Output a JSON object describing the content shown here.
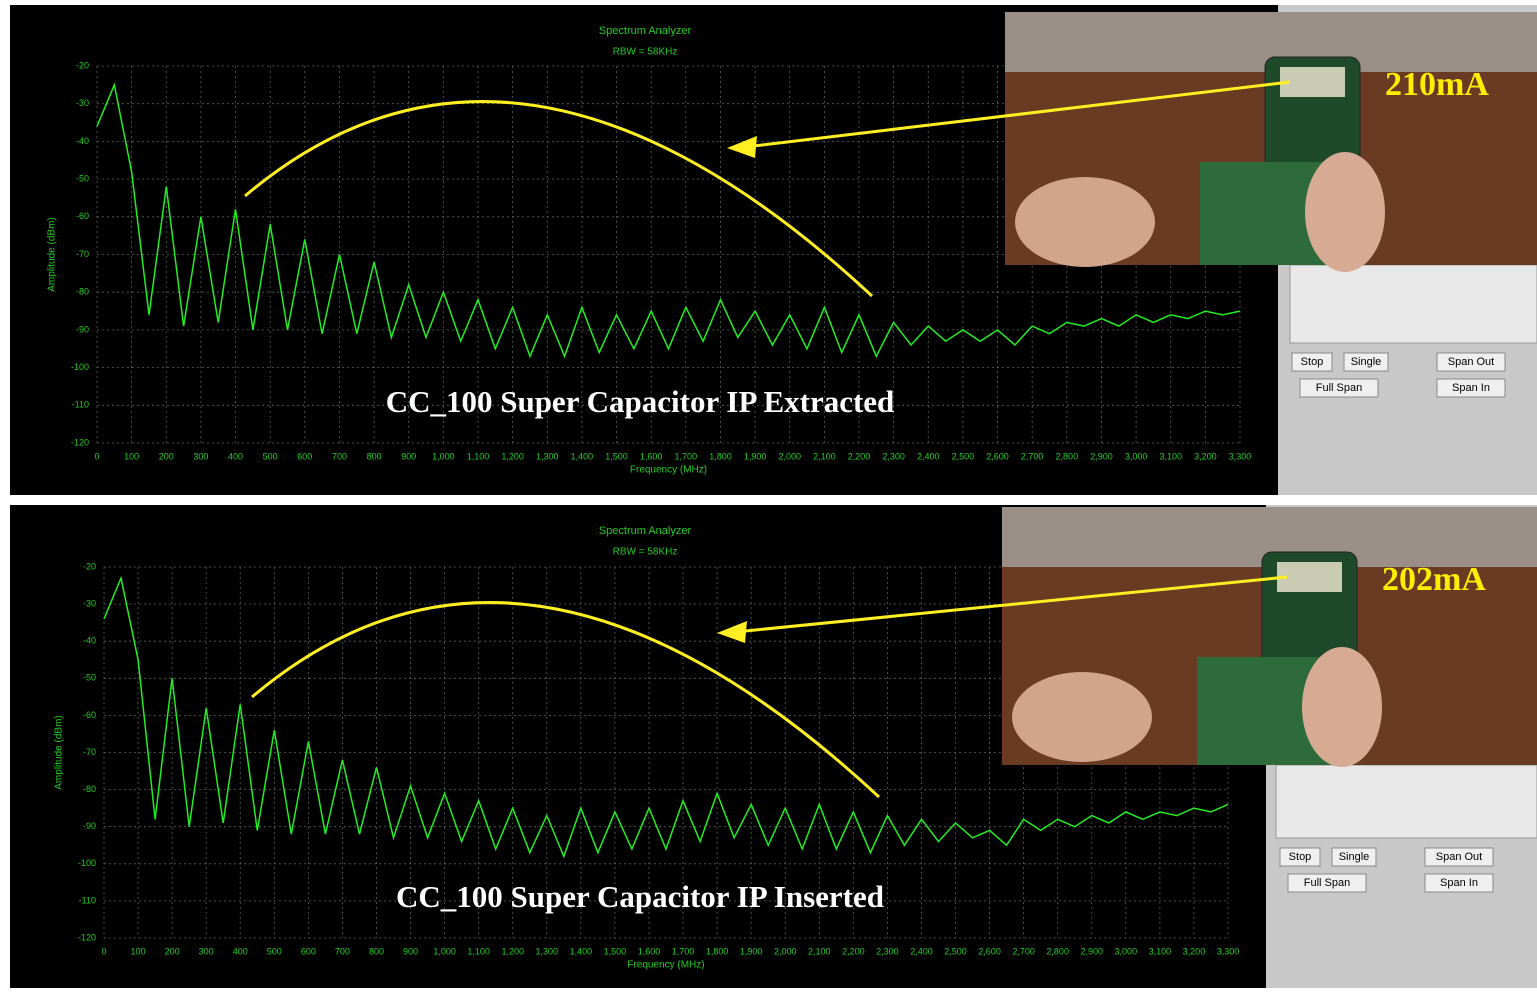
{
  "chart_data": [
    {
      "type": "line",
      "title": "Spectrum Analyzer",
      "subtitle": "RBW = 58KHz",
      "x_label": "Frequency (MHz)",
      "y_label": "Amplitude (dBm)",
      "annotation": "CC_100 Super Capacitor IP  Extracted",
      "color": "#22ee22",
      "grid": true,
      "x": [
        0,
        50,
        100,
        150,
        200,
        250,
        300,
        350,
        400,
        450,
        500,
        550,
        600,
        650,
        700,
        750,
        800,
        850,
        900,
        950,
        1000,
        1050,
        1100,
        1150,
        1200,
        1250,
        1300,
        1350,
        1400,
        1450,
        1500,
        1550,
        1600,
        1650,
        1700,
        1750,
        1800,
        1850,
        1900,
        1950,
        2000,
        2050,
        2100,
        2150,
        2200,
        2250,
        2300,
        2350,
        2400,
        2450,
        2500,
        2550,
        2600,
        2650,
        2700,
        2750,
        2800,
        2850,
        2900,
        2950,
        3000,
        3050,
        3100,
        3150,
        3200,
        3250,
        3300
      ],
      "values": [
        -36,
        -25,
        -48,
        -86,
        -52,
        -89,
        -60,
        -88,
        -58,
        -90,
        -62,
        -90,
        -66,
        -91,
        -70,
        -91,
        -72,
        -92,
        -78,
        -92,
        -80,
        -93,
        -82,
        -95,
        -84,
        -97,
        -86,
        -97,
        -84,
        -96,
        -86,
        -95,
        -85,
        -95,
        -84,
        -93,
        -82,
        -92,
        -85,
        -94,
        -86,
        -95,
        -84,
        -96,
        -86,
        -97,
        -88,
        -94,
        -89,
        -93,
        -90,
        -93,
        -90,
        -94,
        -89,
        -91,
        -88,
        -89,
        -87,
        -89,
        -86,
        -88,
        -86,
        -87,
        -85,
        -86,
        -85
      ],
      "xlim": [
        0,
        3300
      ],
      "ylim": [
        -120,
        -20
      ],
      "xticks": [
        0,
        100,
        200,
        300,
        400,
        500,
        600,
        700,
        800,
        900,
        {
          "value": 1000,
          "label": "1,000"
        },
        {
          "value": 1100,
          "label": "1,100"
        },
        {
          "value": 1200,
          "label": "1,200"
        },
        {
          "value": 1300,
          "label": "1,300"
        },
        {
          "value": 1400,
          "label": "1,400"
        },
        {
          "value": 1500,
          "label": "1,500"
        },
        {
          "value": 1600,
          "label": "1,600"
        },
        {
          "value": 1700,
          "label": "1,700"
        },
        {
          "value": 1800,
          "label": "1,800"
        },
        {
          "value": 1900,
          "label": "1,900"
        },
        {
          "value": 2000,
          "label": "2,000"
        },
        {
          "value": 2100,
          "label": "2,100"
        },
        {
          "value": 2200,
          "label": "2,200"
        },
        {
          "value": 2300,
          "label": "2,300"
        },
        {
          "value": 2400,
          "label": "2,400"
        },
        {
          "value": 2500,
          "label": "2,500"
        },
        {
          "value": 2600,
          "label": "2,600"
        },
        {
          "value": 2700,
          "label": "2,700"
        },
        {
          "value": 2800,
          "label": "2,800"
        },
        {
          "value": 2900,
          "label": "2,900"
        },
        {
          "value": 3000,
          "label": "3,000"
        },
        {
          "value": 3100,
          "label": "3,100"
        },
        {
          "value": 3200,
          "label": "3,200"
        },
        {
          "value": 3300,
          "label": "3,300"
        }
      ],
      "yticks": [
        -20,
        -30,
        -40,
        -50,
        -60,
        -70,
        -80,
        -90,
        -100,
        -110,
        -120
      ]
    },
    {
      "type": "line",
      "title": "Spectrum Analyzer",
      "subtitle": "RBW = 58KHz",
      "x_label": "Frequency (MHz)",
      "y_label": "Amplitude (dBm)",
      "annotation": "CC_100 Super Capacitor IP Inserted",
      "color": "#22ee22",
      "grid": true,
      "x": [
        0,
        50,
        100,
        150,
        200,
        250,
        300,
        350,
        400,
        450,
        500,
        550,
        600,
        650,
        700,
        750,
        800,
        850,
        900,
        950,
        1000,
        1050,
        1100,
        1150,
        1200,
        1250,
        1300,
        1350,
        1400,
        1450,
        1500,
        1550,
        1600,
        1650,
        1700,
        1750,
        1800,
        1850,
        1900,
        1950,
        2000,
        2050,
        2100,
        2150,
        2200,
        2250,
        2300,
        2350,
        2400,
        2450,
        2500,
        2550,
        2600,
        2650,
        2700,
        2750,
        2800,
        2850,
        2900,
        2950,
        3000,
        3050,
        3100,
        3150,
        3200,
        3250,
        3300
      ],
      "values": [
        -34,
        -23,
        -45,
        -88,
        -50,
        -90,
        -58,
        -89,
        -57,
        -91,
        -64,
        -92,
        -67,
        -92,
        -72,
        -92,
        -74,
        -93,
        -79,
        -93,
        -81,
        -94,
        -83,
        -96,
        -85,
        -97,
        -87,
        -98,
        -85,
        -97,
        -86,
        -96,
        -85,
        -96,
        -83,
        -94,
        -81,
        -93,
        -84,
        -95,
        -85,
        -96,
        -84,
        -96,
        -86,
        -97,
        -87,
        -95,
        -88,
        -94,
        -89,
        -93,
        -91,
        -95,
        -88,
        -91,
        -88,
        -90,
        -87,
        -89,
        -86,
        -88,
        -86,
        -87,
        -85,
        -86,
        -84
      ],
      "xlim": [
        0,
        3300
      ],
      "ylim": [
        -120,
        -20
      ],
      "xticks": [
        0,
        100,
        200,
        300,
        400,
        500,
        600,
        700,
        800,
        900,
        {
          "value": 1000,
          "label": "1,000"
        },
        {
          "value": 1100,
          "label": "1,100"
        },
        {
          "value": 1200,
          "label": "1,200"
        },
        {
          "value": 1300,
          "label": "1,300"
        },
        {
          "value": 1400,
          "label": "1,400"
        },
        {
          "value": 1500,
          "label": "1,500"
        },
        {
          "value": 1600,
          "label": "1,600"
        },
        {
          "value": 1700,
          "label": "1,700"
        },
        {
          "value": 1800,
          "label": "1,800"
        },
        {
          "value": 1900,
          "label": "1,900"
        },
        {
          "value": 2000,
          "label": "2,000"
        },
        {
          "value": 2100,
          "label": "2,100"
        },
        {
          "value": 2200,
          "label": "2,200"
        },
        {
          "value": 2300,
          "label": "2,300"
        },
        {
          "value": 2400,
          "label": "2,400"
        },
        {
          "value": 2500,
          "label": "2,500"
        },
        {
          "value": 2600,
          "label": "2,600"
        },
        {
          "value": 2700,
          "label": "2,700"
        },
        {
          "value": 2800,
          "label": "2,800"
        },
        {
          "value": 2900,
          "label": "2,900"
        },
        {
          "value": 3000,
          "label": "3,000"
        },
        {
          "value": 3100,
          "label": "3,100"
        },
        {
          "value": 3200,
          "label": "3,200"
        },
        {
          "value": 3300,
          "label": "3,300"
        }
      ],
      "yticks": [
        -20,
        -30,
        -40,
        -50,
        -60,
        -70,
        -80,
        -90,
        -100,
        -110,
        -120
      ]
    }
  ],
  "panels": [
    {
      "reading": "210mA",
      "buttons": [
        "Stop",
        "Single",
        "Span Out",
        "Full Span",
        "Span In"
      ]
    },
    {
      "reading": "202mA",
      "buttons": [
        "Stop",
        "Single",
        "Span Out",
        "Full Span",
        "Span In"
      ]
    }
  ]
}
